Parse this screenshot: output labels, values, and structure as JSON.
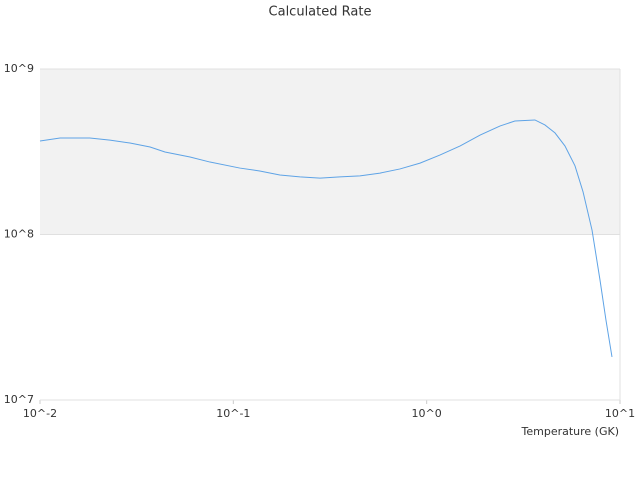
{
  "chart_data": {
    "type": "line",
    "title": "Calculated Rate",
    "x_label": "Temperature (GK)",
    "xscale": "log",
    "yscale": "log",
    "xlim": [
      0.01,
      10
    ],
    "ylim": [
      10000000,
      1000000000
    ],
    "xticks": [
      {
        "value": 0.01,
        "label": "10^-2"
      },
      {
        "value": 0.1,
        "label": "10^-1"
      },
      {
        "value": 1,
        "label": "10^0"
      },
      {
        "value": 10,
        "label": "10^1"
      }
    ],
    "yticks": [
      {
        "value": 10000000,
        "label": "10^7"
      },
      {
        "value": 100000000,
        "label": "10^8"
      },
      {
        "value": 1000000000,
        "label": "10^9"
      }
    ],
    "alternating_bands": true,
    "band_color": "#f2f2f2",
    "x": [
      0.01,
      0.0127,
      0.0181,
      0.023,
      0.0292,
      0.0371,
      0.0443,
      0.0597,
      0.0757,
      0.108,
      0.137,
      0.174,
      0.221,
      0.281,
      0.356,
      0.452,
      0.574,
      0.728,
      0.924,
      1.17,
      1.49,
      1.89,
      2.4,
      2.86,
      3.63,
      4.09,
      4.61,
      5.19,
      5.85,
      6.44,
      7.17,
      7.88,
      8.46,
      9.09
    ],
    "series": [
      {
        "color": "#5ea3e6",
        "values": [
          367000000,
          383000000,
          383000000,
          372000000,
          357000000,
          338000000,
          315000000,
          294000000,
          274000000,
          252000000,
          242000000,
          229000000,
          223000000,
          219000000,
          223000000,
          226000000,
          235000000,
          249000000,
          270000000,
          302000000,
          343000000,
          399000000,
          453000000,
          485000000,
          492000000,
          459000000,
          411000000,
          343000000,
          260000000,
          181000000,
          106000000,
          53100000,
          30400000,
          18200000
        ]
      }
    ]
  }
}
